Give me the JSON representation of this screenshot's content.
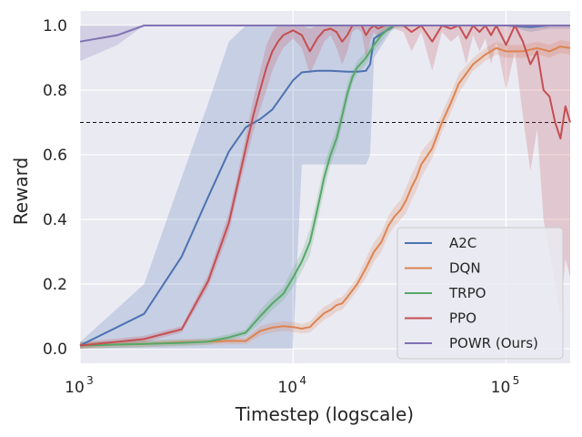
{
  "chart_data": {
    "type": "line",
    "xscale": "log",
    "xlabel": "Timestep (logscale)",
    "ylabel": "Reward",
    "xlim": [
      1000,
      200000
    ],
    "ylim": [
      -0.045,
      1.045
    ],
    "x_ticks": [
      {
        "value": 1000,
        "base": "10",
        "exp": "3"
      },
      {
        "value": 10000,
        "base": "10",
        "exp": "4"
      },
      {
        "value": 100000,
        "base": "10",
        "exp": "5"
      }
    ],
    "y_ticks": [
      {
        "value": 0.0,
        "label": "0.0"
      },
      {
        "value": 0.2,
        "label": "0.2"
      },
      {
        "value": 0.4,
        "label": "0.4"
      },
      {
        "value": 0.6,
        "label": "0.6"
      },
      {
        "value": 0.8,
        "label": "0.8"
      },
      {
        "value": 1.0,
        "label": "1.0"
      }
    ],
    "threshold": 0.7,
    "legend_position": "lower-right",
    "series": [
      {
        "name": "A2C",
        "color": "#4c72b0",
        "x": [
          1000,
          2000,
          3000,
          4000,
          5000,
          6000,
          7000,
          8000,
          10000,
          11000,
          13000,
          15000,
          18000,
          20000,
          22000,
          23000,
          24000,
          30000,
          50000,
          100000,
          130000,
          160000,
          200000
        ],
        "y": [
          0.01,
          0.108,
          0.285,
          0.47,
          0.61,
          0.685,
          0.71,
          0.74,
          0.83,
          0.855,
          0.86,
          0.86,
          0.857,
          0.857,
          0.86,
          0.88,
          0.96,
          1.0,
          1.0,
          1.0,
          0.995,
          1.0,
          1.0
        ],
        "lower": [
          0.0,
          0.0,
          0.0,
          0.0,
          0.0,
          0.0,
          0.0,
          0.0,
          0.0,
          0.57,
          0.57,
          0.57,
          0.57,
          0.57,
          0.57,
          0.6,
          0.9,
          1.0,
          1.0,
          1.0,
          0.98,
          0.99,
          0.99
        ],
        "upper": [
          0.02,
          0.2,
          0.53,
          0.76,
          0.95,
          1.0,
          1.0,
          1.0,
          1.0,
          1.0,
          1.0,
          1.0,
          1.0,
          1.0,
          1.0,
          1.0,
          1.0,
          1.0,
          1.0,
          1.0,
          1.0,
          1.0,
          1.0
        ]
      },
      {
        "name": "DQN",
        "color": "#dd8452",
        "x": [
          1000,
          2000,
          3000,
          4000,
          5000,
          6000,
          7000,
          8000,
          9000,
          10000,
          11000,
          12000,
          13000,
          14000,
          15000,
          16000,
          17000,
          18000,
          20000,
          22000,
          24000,
          26000,
          28000,
          30000,
          32000,
          34000,
          36000,
          38000,
          40000,
          45000,
          50000,
          55000,
          60000,
          70000,
          80000,
          90000,
          100000,
          120000,
          140000,
          160000,
          180000,
          200000
        ],
        "y": [
          0.01,
          0.015,
          0.02,
          0.022,
          0.024,
          0.024,
          0.055,
          0.065,
          0.07,
          0.067,
          0.062,
          0.067,
          0.09,
          0.11,
          0.12,
          0.135,
          0.14,
          0.16,
          0.2,
          0.25,
          0.3,
          0.33,
          0.38,
          0.41,
          0.43,
          0.46,
          0.5,
          0.53,
          0.57,
          0.62,
          0.7,
          0.76,
          0.82,
          0.88,
          0.91,
          0.93,
          0.92,
          0.92,
          0.93,
          0.92,
          0.935,
          0.93
        ],
        "lower": [
          0.0,
          0.005,
          0.01,
          0.012,
          0.014,
          0.014,
          0.04,
          0.05,
          0.055,
          0.052,
          0.047,
          0.05,
          0.07,
          0.09,
          0.1,
          0.115,
          0.12,
          0.14,
          0.18,
          0.22,
          0.27,
          0.3,
          0.35,
          0.38,
          0.4,
          0.42,
          0.46,
          0.49,
          0.53,
          0.59,
          0.67,
          0.73,
          0.79,
          0.86,
          0.89,
          0.91,
          0.9,
          0.9,
          0.91,
          0.9,
          0.915,
          0.91
        ],
        "upper": [
          0.02,
          0.025,
          0.03,
          0.032,
          0.034,
          0.034,
          0.07,
          0.08,
          0.085,
          0.082,
          0.077,
          0.084,
          0.11,
          0.13,
          0.14,
          0.155,
          0.16,
          0.18,
          0.22,
          0.28,
          0.33,
          0.36,
          0.41,
          0.44,
          0.46,
          0.5,
          0.54,
          0.57,
          0.61,
          0.65,
          0.73,
          0.79,
          0.85,
          0.9,
          0.93,
          0.95,
          0.94,
          0.94,
          0.95,
          0.94,
          0.955,
          0.95
        ]
      },
      {
        "name": "TRPO",
        "color": "#55a868",
        "x": [
          1000,
          2000,
          3000,
          4000,
          5000,
          6000,
          7000,
          8000,
          9000,
          10000,
          11000,
          12000,
          13000,
          14000,
          15000,
          16000,
          17000,
          18000,
          19000,
          20000,
          22000,
          24000,
          26000,
          28000,
          30000,
          40000,
          60000,
          100000,
          200000
        ],
        "y": [
          0.01,
          0.015,
          0.018,
          0.022,
          0.035,
          0.05,
          0.1,
          0.14,
          0.17,
          0.22,
          0.27,
          0.33,
          0.43,
          0.53,
          0.6,
          0.65,
          0.72,
          0.79,
          0.84,
          0.87,
          0.9,
          0.94,
          0.97,
          0.99,
          1.0,
          1.0,
          1.0,
          1.0,
          1.0
        ],
        "lower": [
          0.0,
          0.005,
          0.008,
          0.012,
          0.025,
          0.04,
          0.08,
          0.12,
          0.15,
          0.19,
          0.24,
          0.29,
          0.39,
          0.49,
          0.57,
          0.62,
          0.69,
          0.76,
          0.82,
          0.85,
          0.88,
          0.92,
          0.95,
          0.98,
          0.99,
          1.0,
          1.0,
          1.0,
          1.0
        ],
        "upper": [
          0.02,
          0.025,
          0.028,
          0.032,
          0.045,
          0.06,
          0.12,
          0.16,
          0.19,
          0.25,
          0.3,
          0.37,
          0.47,
          0.57,
          0.63,
          0.68,
          0.75,
          0.82,
          0.86,
          0.89,
          0.92,
          0.96,
          0.99,
          1.0,
          1.0,
          1.0,
          1.0,
          1.0,
          1.0
        ]
      },
      {
        "name": "PPO",
        "color": "#c44e52",
        "x": [
          1000,
          2000,
          3000,
          4000,
          5000,
          5500,
          6000,
          6500,
          7000,
          7500,
          8000,
          8500,
          9000,
          10000,
          11000,
          12000,
          13000,
          14000,
          15000,
          16000,
          17000,
          18000,
          19000,
          20000,
          21000,
          22000,
          23000,
          24000,
          25000,
          27000,
          30000,
          33000,
          36000,
          40000,
          45000,
          50000,
          55000,
          60000,
          65000,
          70000,
          75000,
          80000,
          85000,
          90000,
          100000,
          110000,
          120000,
          130000,
          140000,
          150000,
          160000,
          170000,
          180000,
          190000,
          200000
        ],
        "y": [
          0.01,
          0.03,
          0.06,
          0.21,
          0.39,
          0.51,
          0.62,
          0.72,
          0.8,
          0.87,
          0.92,
          0.95,
          0.97,
          0.985,
          0.97,
          0.92,
          0.96,
          0.985,
          0.99,
          0.98,
          0.95,
          0.97,
          1.0,
          1.0,
          1.0,
          0.97,
          0.99,
          1.0,
          0.99,
          1.0,
          1.0,
          1.0,
          0.98,
          1.0,
          0.95,
          1.0,
          0.99,
          1.0,
          0.96,
          1.0,
          0.98,
          1.0,
          0.97,
          1.0,
          0.94,
          1.0,
          0.95,
          0.88,
          0.92,
          0.8,
          0.78,
          0.7,
          0.65,
          0.75,
          0.7
        ],
        "lower": [
          0.0,
          0.02,
          0.05,
          0.19,
          0.36,
          0.48,
          0.58,
          0.67,
          0.74,
          0.8,
          0.86,
          0.9,
          0.93,
          0.96,
          0.93,
          0.85,
          0.9,
          0.95,
          0.97,
          0.93,
          0.88,
          0.92,
          0.98,
          0.99,
          0.98,
          0.9,
          0.95,
          0.98,
          0.96,
          0.98,
          0.99,
          0.98,
          0.92,
          0.98,
          0.86,
          0.98,
          0.95,
          0.97,
          0.88,
          0.97,
          0.92,
          0.96,
          0.88,
          0.95,
          0.8,
          0.92,
          0.72,
          0.55,
          0.68,
          0.4,
          0.3,
          0.2,
          0.1,
          0.28,
          0.22
        ],
        "upper": [
          0.02,
          0.04,
          0.07,
          0.23,
          0.42,
          0.54,
          0.66,
          0.77,
          0.86,
          0.94,
          0.98,
          1.0,
          1.0,
          1.0,
          1.0,
          0.99,
          1.0,
          1.0,
          1.0,
          1.0,
          1.0,
          1.0,
          1.0,
          1.0,
          1.0,
          1.0,
          1.0,
          1.0,
          1.0,
          1.0,
          1.0,
          1.0,
          1.0,
          1.0,
          1.0,
          1.0,
          1.0,
          1.0,
          1.0,
          1.0,
          1.0,
          1.0,
          1.0,
          1.0,
          1.0,
          1.0,
          1.0,
          1.0,
          1.0,
          1.0,
          1.0,
          1.0,
          1.0,
          1.0,
          1.0
        ]
      },
      {
        "name": "POWR (Ours)",
        "color": "#8172b3",
        "x": [
          1000,
          1500,
          2000,
          3000,
          5000,
          10000,
          100000,
          200000
        ],
        "y": [
          0.95,
          0.97,
          1.0,
          1.0,
          1.0,
          1.0,
          1.0,
          1.0
        ],
        "lower": [
          0.89,
          0.94,
          1.0,
          1.0,
          1.0,
          1.0,
          1.0,
          1.0
        ],
        "upper": [
          1.0,
          1.0,
          1.0,
          1.0,
          1.0,
          1.0,
          1.0,
          1.0
        ]
      }
    ]
  }
}
